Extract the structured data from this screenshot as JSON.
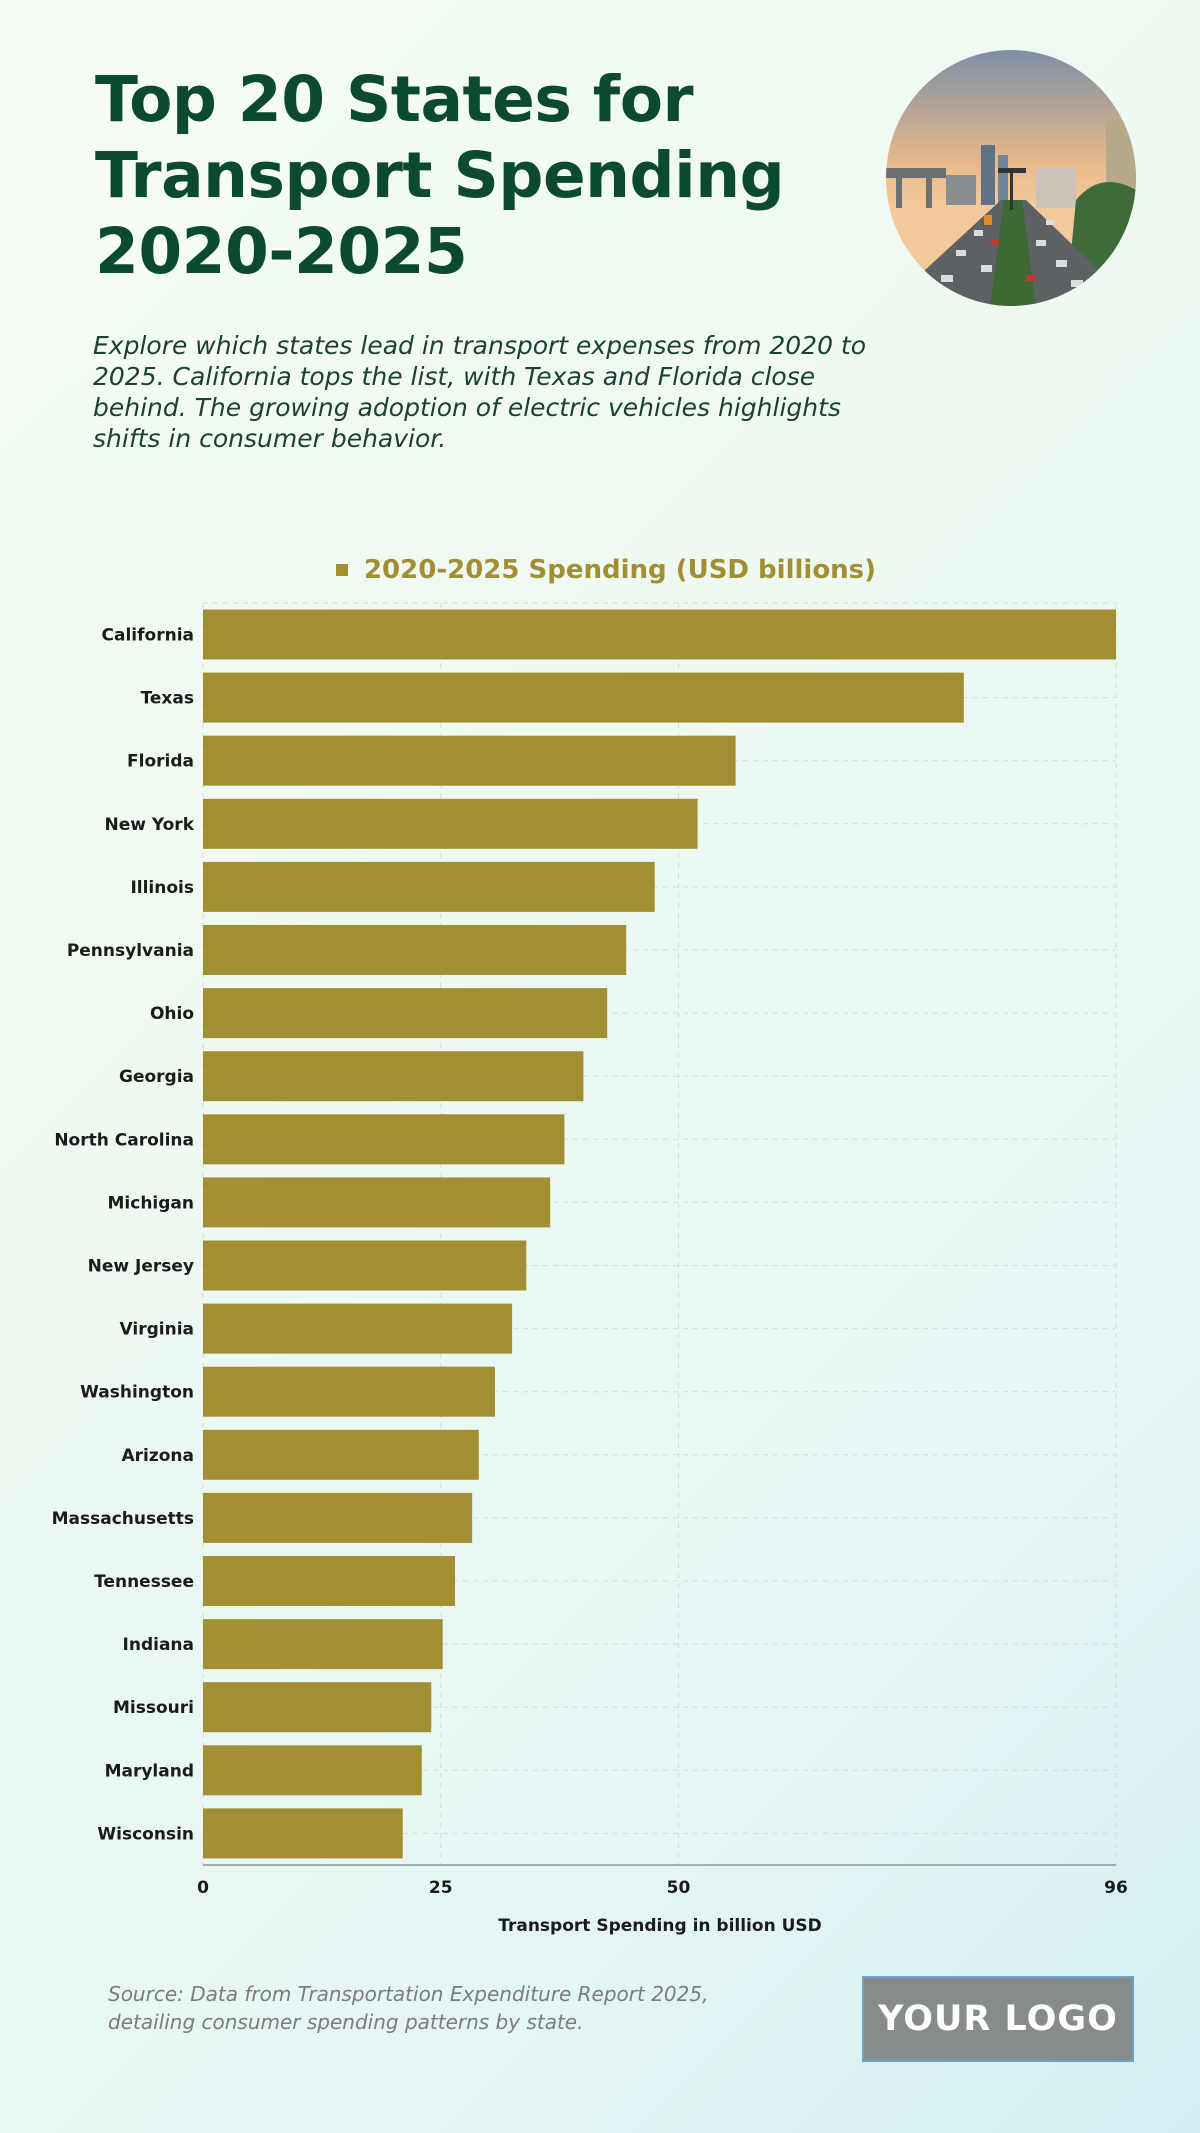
{
  "header": {
    "title": "Top 20 States for Transport Spending 2020-2025",
    "subtitle": "Explore which states lead in transport expenses from 2020 to 2025. California tops the list, with Texas and Florida close behind. The growing adoption of electric vehicles highlights shifts in consumer behavior."
  },
  "footer": {
    "source": "Source: Data from Transportation Expenditure Report 2025, detailing consumer spending patterns by state.",
    "logo_text": "YOUR LOGO"
  },
  "colors": {
    "bar": "#a38f33",
    "title": "#0b4a2e",
    "grid": "#cfdcd8"
  },
  "photo_icon": "city-highway-traffic-photo",
  "chart_data": {
    "type": "bar",
    "orientation": "horizontal",
    "categories": [
      "California",
      "Texas",
      "Florida",
      "New York",
      "Illinois",
      "Pennsylvania",
      "Ohio",
      "Georgia",
      "North Carolina",
      "Michigan",
      "New Jersey",
      "Virginia",
      "Washington",
      "Arizona",
      "Massachusetts",
      "Tennessee",
      "Indiana",
      "Missouri",
      "Maryland",
      "Wisconsin"
    ],
    "series": [
      {
        "name": "2020-2025 Spending (USD billions)",
        "values": [
          96,
          80,
          56,
          52,
          47.5,
          44.5,
          42.5,
          40,
          38,
          36.5,
          34,
          32.5,
          30.7,
          29,
          28.3,
          26.5,
          25.2,
          24,
          23,
          21
        ]
      }
    ],
    "xlabel": "Transport Spending in billion USD",
    "ylabel": "",
    "xlim": [
      0,
      96
    ],
    "xticks": [
      "0",
      "25",
      "50",
      "96"
    ],
    "xtick_values": [
      0,
      25,
      50,
      96
    ],
    "grid": true,
    "legend": "top-center"
  }
}
